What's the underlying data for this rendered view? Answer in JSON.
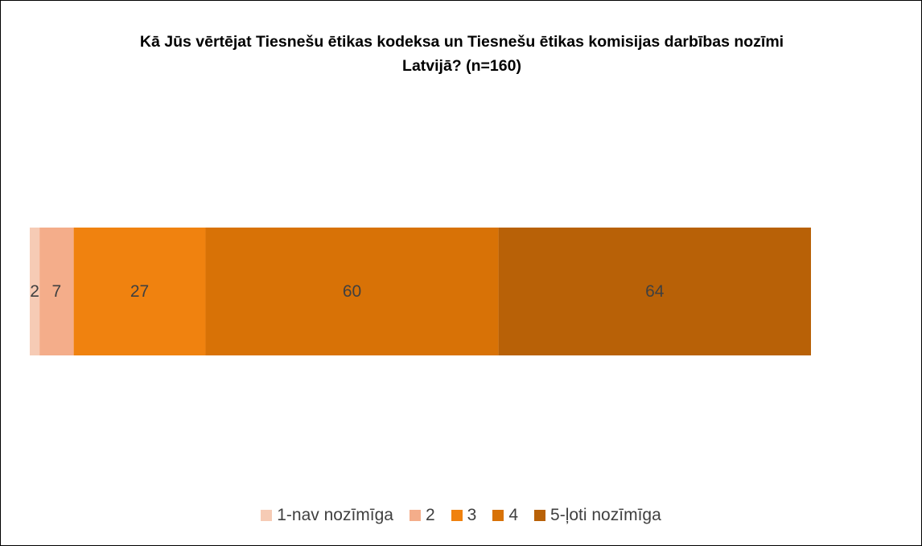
{
  "chart_data": {
    "type": "bar",
    "orientation": "horizontal",
    "stacked": true,
    "title": "Kā Jūs vērtējat Tiesnešu ētikas kodeksa un Tiesnešu ētikas komisijas darbības nozīmi Latvijā? (n=160)",
    "legend": "bottom",
    "series": [
      {
        "name": "1-nav nozīmīga",
        "color": "#f6cbb5",
        "values": [
          2
        ]
      },
      {
        "name": "2",
        "color": "#f4ad8a",
        "values": [
          7
        ]
      },
      {
        "name": "3",
        "color": "#f0820f",
        "values": [
          27
        ]
      },
      {
        "name": "4",
        "color": "#d87206",
        "values": [
          60
        ]
      },
      {
        "name": "5-ļoti nozīmīga",
        "color": "#b86107",
        "values": [
          64
        ]
      }
    ]
  }
}
